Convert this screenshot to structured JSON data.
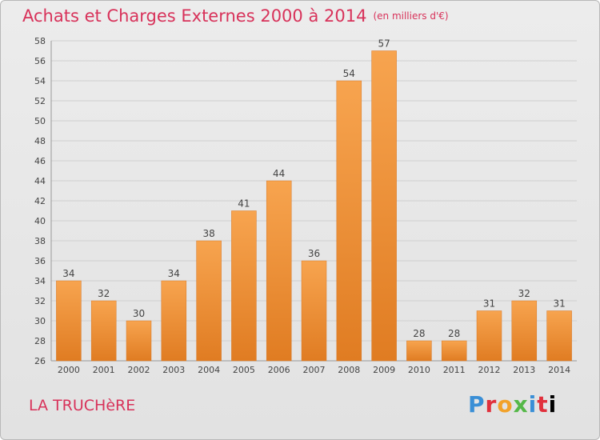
{
  "chart_data": {
    "type": "bar",
    "title": "Achats et Charges Externes 2000 à 2014",
    "subtitle": "(en milliers d'€)",
    "categories": [
      "2000",
      "2001",
      "2002",
      "2003",
      "2004",
      "2005",
      "2006",
      "2007",
      "2008",
      "2009",
      "2010",
      "2011",
      "2012",
      "2013",
      "2014"
    ],
    "values": [
      34,
      32,
      30,
      34,
      38,
      41,
      44,
      36,
      54,
      57,
      28,
      28,
      31,
      32,
      31
    ],
    "ylim": [
      26,
      58
    ],
    "yticks": [
      26,
      28,
      30,
      32,
      34,
      36,
      38,
      40,
      42,
      44,
      46,
      48,
      50,
      52,
      54,
      56,
      58
    ],
    "grid": true,
    "bar_color": "#f0923a"
  },
  "place_name": "LA TRUCHèRE",
  "logo_text": "Proxiti"
}
